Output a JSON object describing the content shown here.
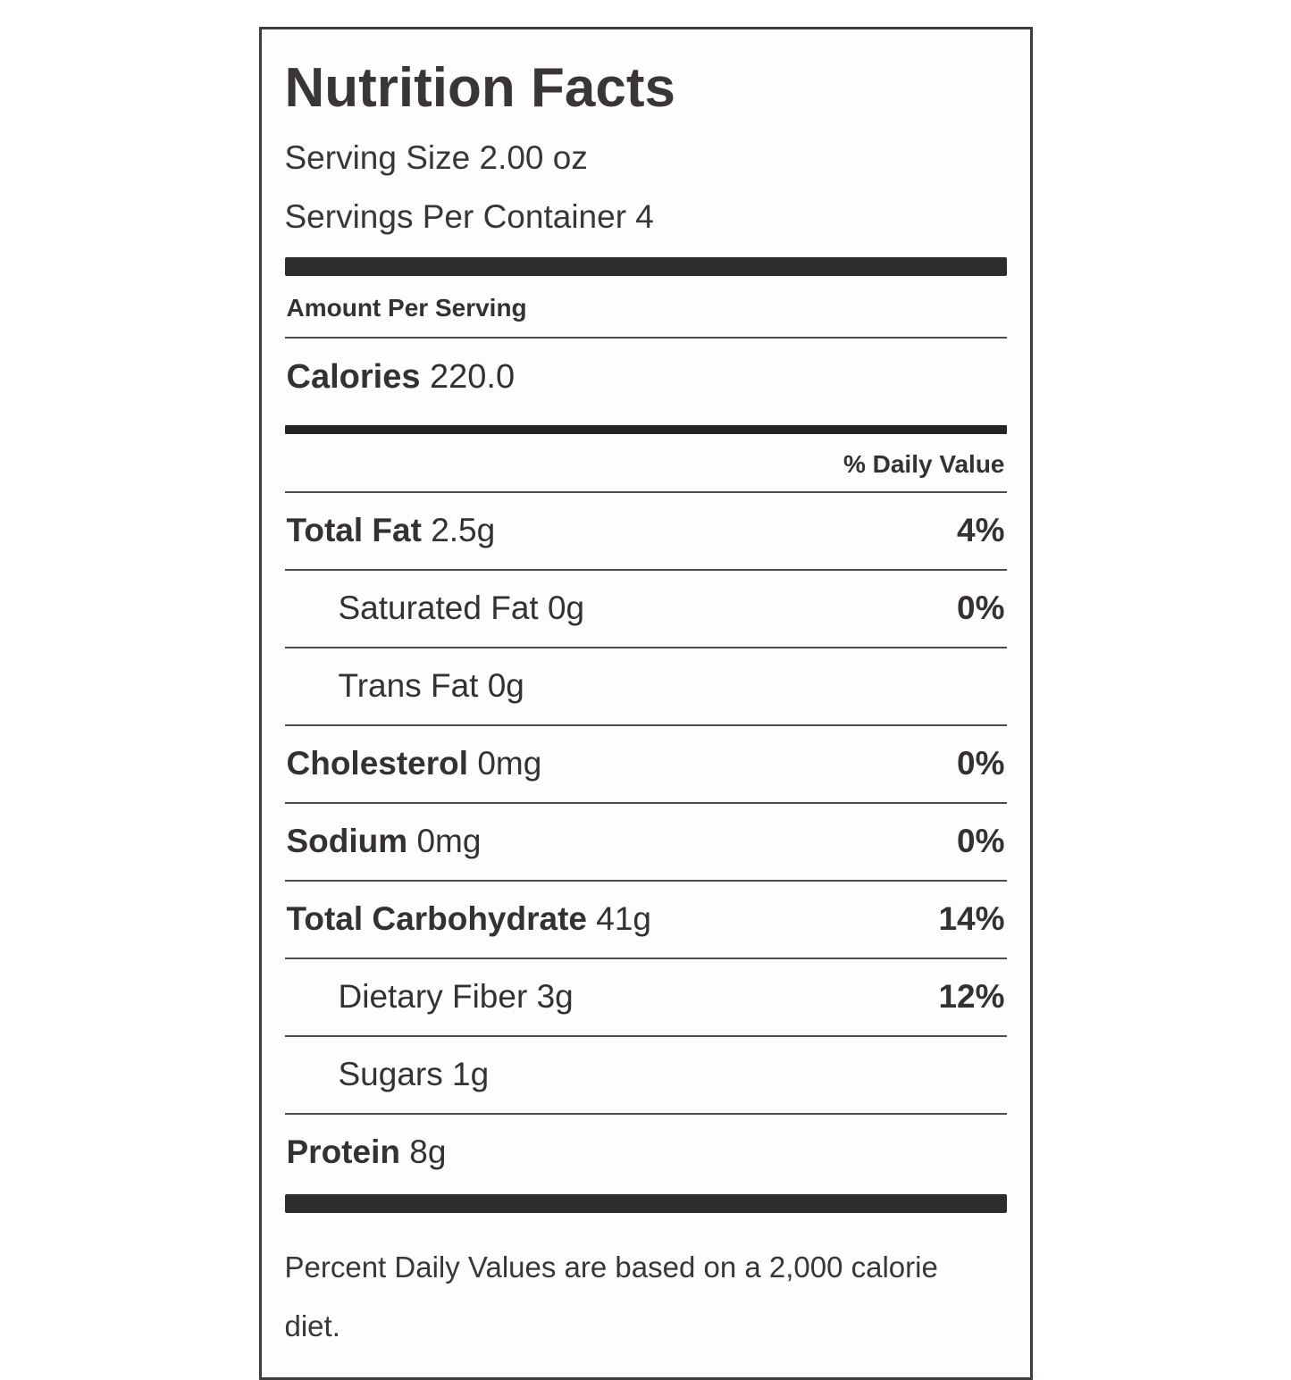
{
  "label": {
    "title": "Nutrition Facts",
    "serving_size": "Serving Size 2.00 oz",
    "servings_per_container": "Servings Per Container 4",
    "amount_per_serving": "Amount Per Serving",
    "calories_label": "Calories",
    "calories_value": "220.0",
    "daily_value_header": "% Daily Value",
    "rows": [
      {
        "label": "Total Fat",
        "amount": "2.5g",
        "dv": "4%"
      },
      {
        "label": "Saturated Fat",
        "amount": "0g",
        "dv": "0%"
      },
      {
        "label": "Trans Fat",
        "amount": "0g",
        "dv": ""
      },
      {
        "label": "Cholesterol",
        "amount": "0mg",
        "dv": "0%"
      },
      {
        "label": "Sodium",
        "amount": "0mg",
        "dv": "0%"
      },
      {
        "label": "Total Carbohydrate",
        "amount": "41g",
        "dv": "14%"
      },
      {
        "label": "Dietary Fiber",
        "amount": "3g",
        "dv": "12%"
      },
      {
        "label": "Sugars",
        "amount": "1g",
        "dv": ""
      },
      {
        "label": "Protein",
        "amount": "8g",
        "dv": ""
      }
    ],
    "footnote": "Percent Daily Values are based on a 2,000 calorie diet."
  },
  "colors": {
    "text": "#3a3637",
    "bar": "#2d2d2d",
    "background": "#ffffff"
  }
}
